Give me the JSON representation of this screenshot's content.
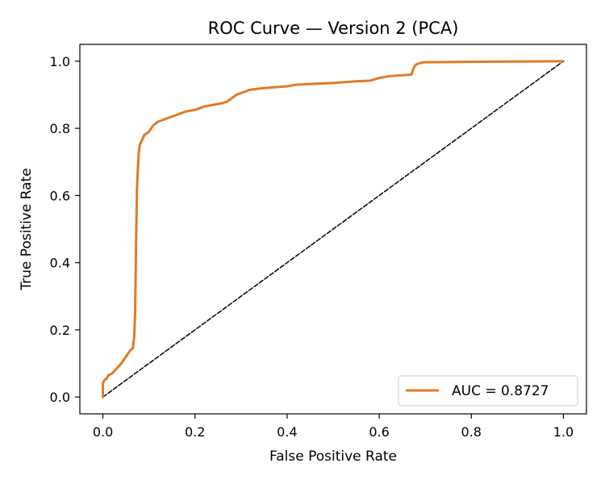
{
  "chart_data": {
    "type": "line",
    "title": "ROC Curve — Version 2 (PCA)",
    "xlabel": "False Positive Rate",
    "ylabel": "True Positive Rate",
    "xlim": [
      -0.05,
      1.05
    ],
    "ylim": [
      -0.05,
      1.05
    ],
    "xticks": [
      0.0,
      0.2,
      0.4,
      0.6,
      0.8,
      1.0
    ],
    "yticks": [
      0.0,
      0.2,
      0.4,
      0.6,
      0.8,
      1.0
    ],
    "xtick_labels": [
      "0.0",
      "0.2",
      "0.4",
      "0.6",
      "0.8",
      "1.0"
    ],
    "ytick_labels": [
      "0.0",
      "0.2",
      "0.4",
      "0.6",
      "0.8",
      "1.0"
    ],
    "grid": false,
    "legend_position": "lower-right",
    "series": [
      {
        "name": "AUC = 0.8727",
        "color": "#e07b27",
        "style": "solid",
        "x": [
          0.0,
          0.0,
          0.003,
          0.008,
          0.012,
          0.02,
          0.03,
          0.04,
          0.045,
          0.05,
          0.055,
          0.06,
          0.065,
          0.068,
          0.07,
          0.072,
          0.074,
          0.076,
          0.078,
          0.08,
          0.085,
          0.09,
          0.1,
          0.11,
          0.12,
          0.14,
          0.16,
          0.18,
          0.2,
          0.22,
          0.24,
          0.26,
          0.27,
          0.28,
          0.29,
          0.3,
          0.32,
          0.35,
          0.4,
          0.42,
          0.45,
          0.5,
          0.55,
          0.58,
          0.6,
          0.62,
          0.65,
          0.67,
          0.675,
          0.68,
          0.69,
          0.7,
          0.8,
          0.9,
          1.0
        ],
        "y": [
          0.0,
          0.04,
          0.05,
          0.055,
          0.065,
          0.07,
          0.085,
          0.1,
          0.11,
          0.12,
          0.13,
          0.14,
          0.145,
          0.18,
          0.25,
          0.45,
          0.62,
          0.68,
          0.73,
          0.75,
          0.765,
          0.78,
          0.79,
          0.81,
          0.82,
          0.83,
          0.84,
          0.85,
          0.855,
          0.865,
          0.87,
          0.875,
          0.88,
          0.89,
          0.9,
          0.905,
          0.915,
          0.92,
          0.925,
          0.93,
          0.932,
          0.935,
          0.94,
          0.942,
          0.95,
          0.955,
          0.958,
          0.96,
          0.98,
          0.99,
          0.995,
          0.997,
          0.998,
          0.999,
          1.0
        ]
      },
      {
        "name": "",
        "color": "#000000",
        "style": "dashed",
        "x": [
          0.0,
          1.0
        ],
        "y": [
          0.0,
          1.0
        ]
      }
    ]
  }
}
